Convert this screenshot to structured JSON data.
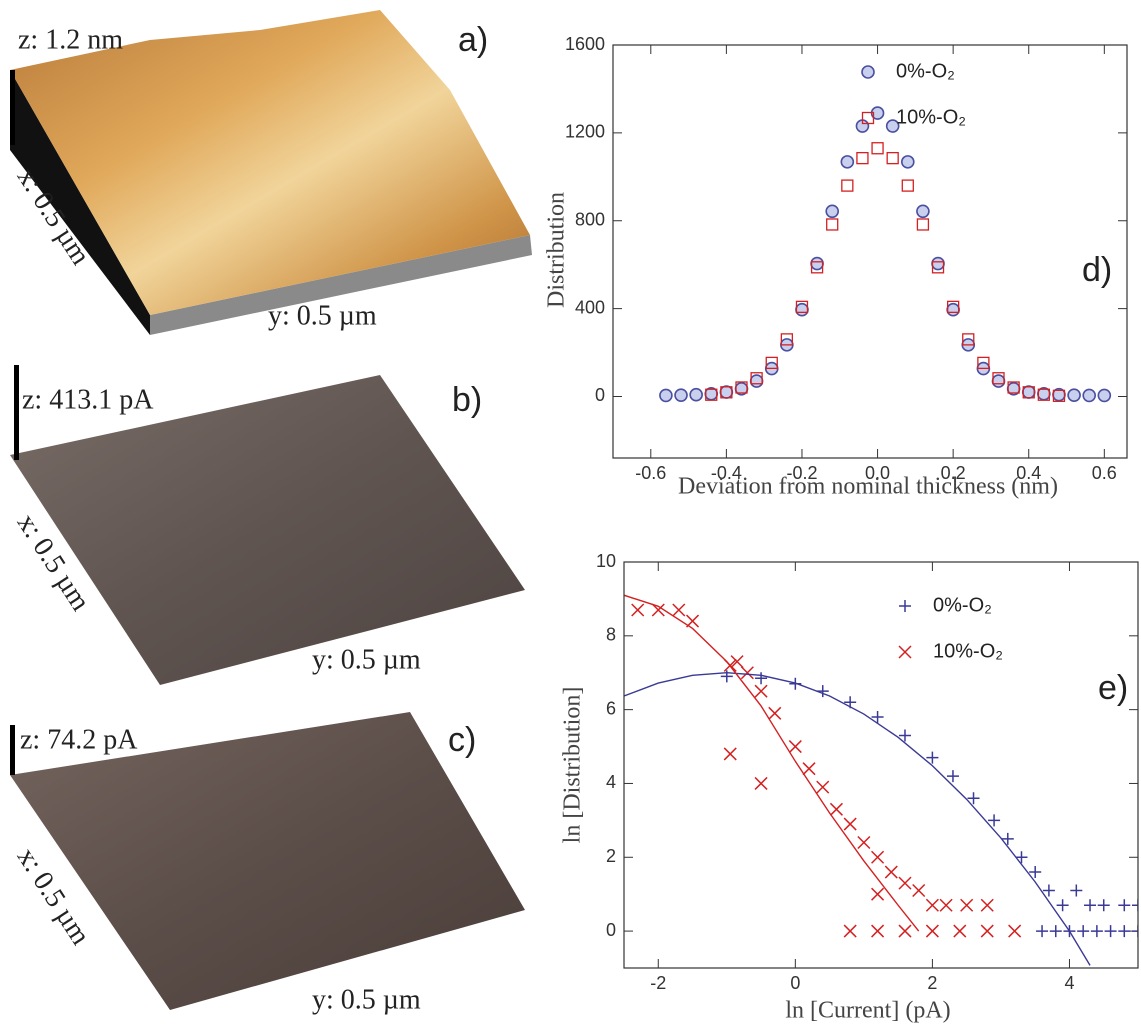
{
  "panels": [
    {
      "label": "a)",
      "z": "z: 1.2 nm",
      "x": "x: 0.5 µm",
      "y": "y: 0.5 µm"
    },
    {
      "label": "b)",
      "z": "z: 413.1 pA",
      "x": "x: 0.5 µm",
      "y": "y: 0.5 µm"
    },
    {
      "label": "c)",
      "z": "z: 74.2 pA",
      "x": "x: 0.5 µm",
      "y": "y: 0.5 µm"
    }
  ],
  "chart_data": [
    {
      "type": "scatter",
      "panel_label": "d)",
      "x_label": "Deviation from nominal thickness (nm)",
      "y_label": "Distribution",
      "xlim": [
        -0.7,
        0.66
      ],
      "ylim": [
        -280,
        1600
      ],
      "xticks": [
        -0.6,
        -0.4,
        -0.2,
        {
          "value": 0,
          "label": "0.0"
        },
        0.2,
        0.4,
        0.6
      ],
      "yticks": [
        0,
        400,
        800,
        1200,
        1600
      ],
      "legend": "upper right",
      "series": [
        {
          "name": "0%-O₂",
          "color": "#4b4fa0",
          "marker": "circle",
          "x": [
            -0.56,
            -0.52,
            -0.48,
            -0.44,
            -0.4,
            -0.36,
            -0.32,
            -0.28,
            -0.24,
            -0.2,
            -0.16,
            -0.12,
            -0.08,
            -0.04,
            0,
            0.04,
            0.08,
            0.12,
            0.16,
            0.2,
            0.24,
            0.28,
            0.32,
            0.36,
            0.4,
            0.44,
            0.48,
            0.52,
            0.56,
            0.6
          ],
          "values": [
            5,
            6,
            8,
            12,
            20,
            35,
            70,
            127,
            235,
            395,
            605,
            843,
            1068,
            1231,
            1290,
            1231,
            1068,
            843,
            605,
            395,
            235,
            127,
            70,
            35,
            20,
            12,
            8,
            6,
            5,
            5
          ]
        },
        {
          "name": "10%-O₂",
          "color": "#d42020",
          "marker": "square",
          "x": [
            -0.44,
            -0.4,
            -0.36,
            -0.32,
            -0.28,
            -0.24,
            -0.2,
            -0.16,
            -0.12,
            -0.08,
            -0.04,
            0,
            0.04,
            0.08,
            0.12,
            0.16,
            0.2,
            0.24,
            0.28,
            0.32,
            0.36,
            0.4,
            0.44,
            0.48
          ],
          "values": [
            8,
            19,
            41,
            83,
            153,
            260,
            408,
            588,
            783,
            960,
            1085,
            1130,
            1085,
            960,
            783,
            588,
            408,
            260,
            153,
            83,
            41,
            19,
            8,
            3
          ]
        }
      ]
    },
    {
      "type": "scatter",
      "panel_label": "e)",
      "x_label": "ln [Current] (pA)",
      "y_label": "ln [Distribution]",
      "xlim": [
        -2.5,
        5
      ],
      "ylim": [
        -1,
        10
      ],
      "xticks": [
        -2,
        0,
        2,
        4
      ],
      "yticks": [
        0,
        2,
        4,
        6,
        8,
        10
      ],
      "legend": "upper right",
      "series": [
        {
          "name": "0%-O₂",
          "color": "#3a3a96",
          "marker": "plus",
          "x": [
            -1,
            -0.5,
            0,
            0.4,
            0.8,
            1.2,
            1.6,
            2,
            2.3,
            2.6,
            2.9,
            3.1,
            3.3,
            3.5,
            3.7,
            3.9,
            4.1,
            4.3,
            4.5,
            4.8,
            5,
            3.6,
            3.8,
            4,
            4.2,
            4.4,
            4.6,
            4.8,
            5
          ],
          "values": [
            6.9,
            6.85,
            6.7,
            6.5,
            6.2,
            5.8,
            5.3,
            4.7,
            4.2,
            3.6,
            3,
            2.5,
            2,
            1.6,
            1.1,
            0.7,
            1.1,
            0.7,
            0.7,
            0.7,
            0.7,
            0,
            0,
            0,
            0,
            0,
            0,
            0,
            0
          ]
        },
        {
          "name": "10%-O₂",
          "color": "#d42020",
          "marker": "x",
          "x": [
            -2.3,
            -2,
            -1.7,
            -1.5,
            -0.95,
            -0.85,
            -0.7,
            -0.5,
            -0.3,
            0,
            0.2,
            0.4,
            0.6,
            0.8,
            1,
            1.2,
            1.4,
            1.6,
            1.8,
            2,
            2.2,
            2.5,
            2.8,
            -0.95,
            -0.5,
            1.2,
            0.8,
            1.2,
            1.6,
            2,
            2.4,
            2.8,
            3.2
          ],
          "values": [
            8.7,
            8.7,
            8.7,
            8.4,
            7.2,
            7.3,
            7,
            6.5,
            5.9,
            5,
            4.4,
            3.9,
            3.3,
            2.9,
            2.4,
            2,
            1.6,
            1.3,
            1.1,
            0.7,
            0.7,
            0.7,
            0.7,
            4.8,
            4,
            1,
            0,
            0,
            0,
            0,
            0,
            0,
            0
          ]
        },
        {
          "color": "#3a3a96",
          "marker": "line",
          "x": [
            -2.5,
            -2,
            -1.5,
            -1,
            -0.5,
            0,
            0.5,
            1,
            1.5,
            2,
            2.5,
            3,
            3.5,
            4,
            4.3
          ],
          "values": [
            6.37,
            6.72,
            6.93,
            7,
            6.93,
            6.72,
            6.37,
            5.88,
            5.25,
            4.48,
            3.57,
            2.52,
            1.33,
            0,
            -0.93
          ]
        },
        {
          "color": "#d42020",
          "marker": "line",
          "x": [
            -2.5,
            -2,
            -1.5,
            -1,
            -0.5,
            0,
            0.5,
            1,
            1.5,
            1.8
          ],
          "values": [
            9.1,
            8.8,
            8.2,
            7.3,
            6.1,
            4.6,
            3.2,
            1.9,
            0.7,
            0
          ]
        }
      ]
    }
  ]
}
